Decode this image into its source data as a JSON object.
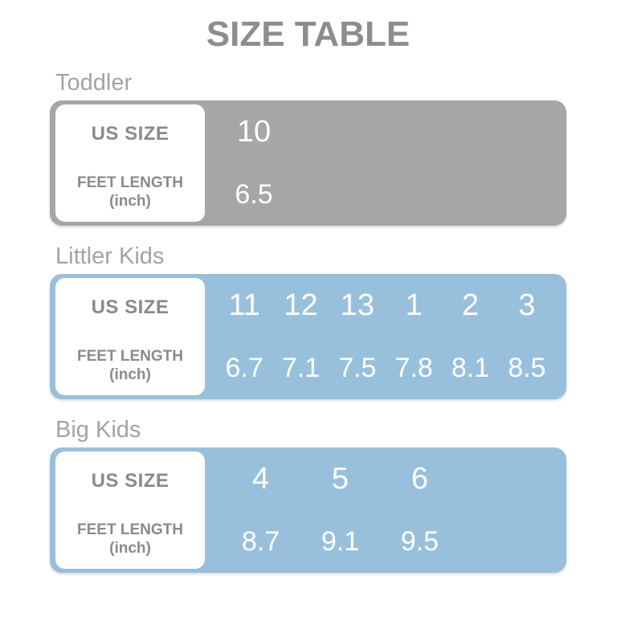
{
  "page": {
    "title": "SIZE TABLE"
  },
  "colors": {
    "title_gray": "#8d8d8d",
    "section_label_gray": "#a3a3a3",
    "toddler_table_gray": "#a8a5a9",
    "kids_table_blue": "#98c0dc",
    "row_header_text_gray": "#8a8a8a",
    "value_text_white": "#ffffff"
  },
  "row_headers": {
    "us_size": "US SIZE",
    "feet_length": "FEET LENGTH",
    "feet_unit": "(inch)"
  },
  "sections": [
    {
      "id": "toddler",
      "label": "Toddler",
      "theme": "gray",
      "us_sizes": [
        "10"
      ],
      "feet_lengths": [
        "6.5"
      ]
    },
    {
      "id": "littler-kids",
      "label": "Littler Kids",
      "theme": "blue",
      "us_sizes": [
        "11",
        "12",
        "13",
        "1",
        "2",
        "3"
      ],
      "feet_lengths": [
        "6.7",
        "7.1",
        "7.5",
        "7.8",
        "8.1",
        "8.5"
      ]
    },
    {
      "id": "big-kids",
      "label": "Big Kids",
      "theme": "blue",
      "us_sizes": [
        "4",
        "5",
        "6"
      ],
      "feet_lengths": [
        "8.7",
        "9.1",
        "9.5"
      ]
    }
  ],
  "chart_data": [
    {
      "type": "table",
      "title": "Toddler",
      "rows": [
        {
          "label": "US SIZE",
          "values": [
            "10"
          ]
        },
        {
          "label": "FEET LENGTH (inch)",
          "values": [
            "6.5"
          ]
        }
      ]
    },
    {
      "type": "table",
      "title": "Littler Kids",
      "rows": [
        {
          "label": "US SIZE",
          "values": [
            "11",
            "12",
            "13",
            "1",
            "2",
            "3"
          ]
        },
        {
          "label": "FEET LENGTH (inch)",
          "values": [
            "6.7",
            "7.1",
            "7.5",
            "7.8",
            "8.1",
            "8.5"
          ]
        }
      ]
    },
    {
      "type": "table",
      "title": "Big Kids",
      "rows": [
        {
          "label": "US SIZE",
          "values": [
            "4",
            "5",
            "6"
          ]
        },
        {
          "label": "FEET LENGTH (inch)",
          "values": [
            "8.7",
            "9.1",
            "9.5"
          ]
        }
      ]
    }
  ]
}
